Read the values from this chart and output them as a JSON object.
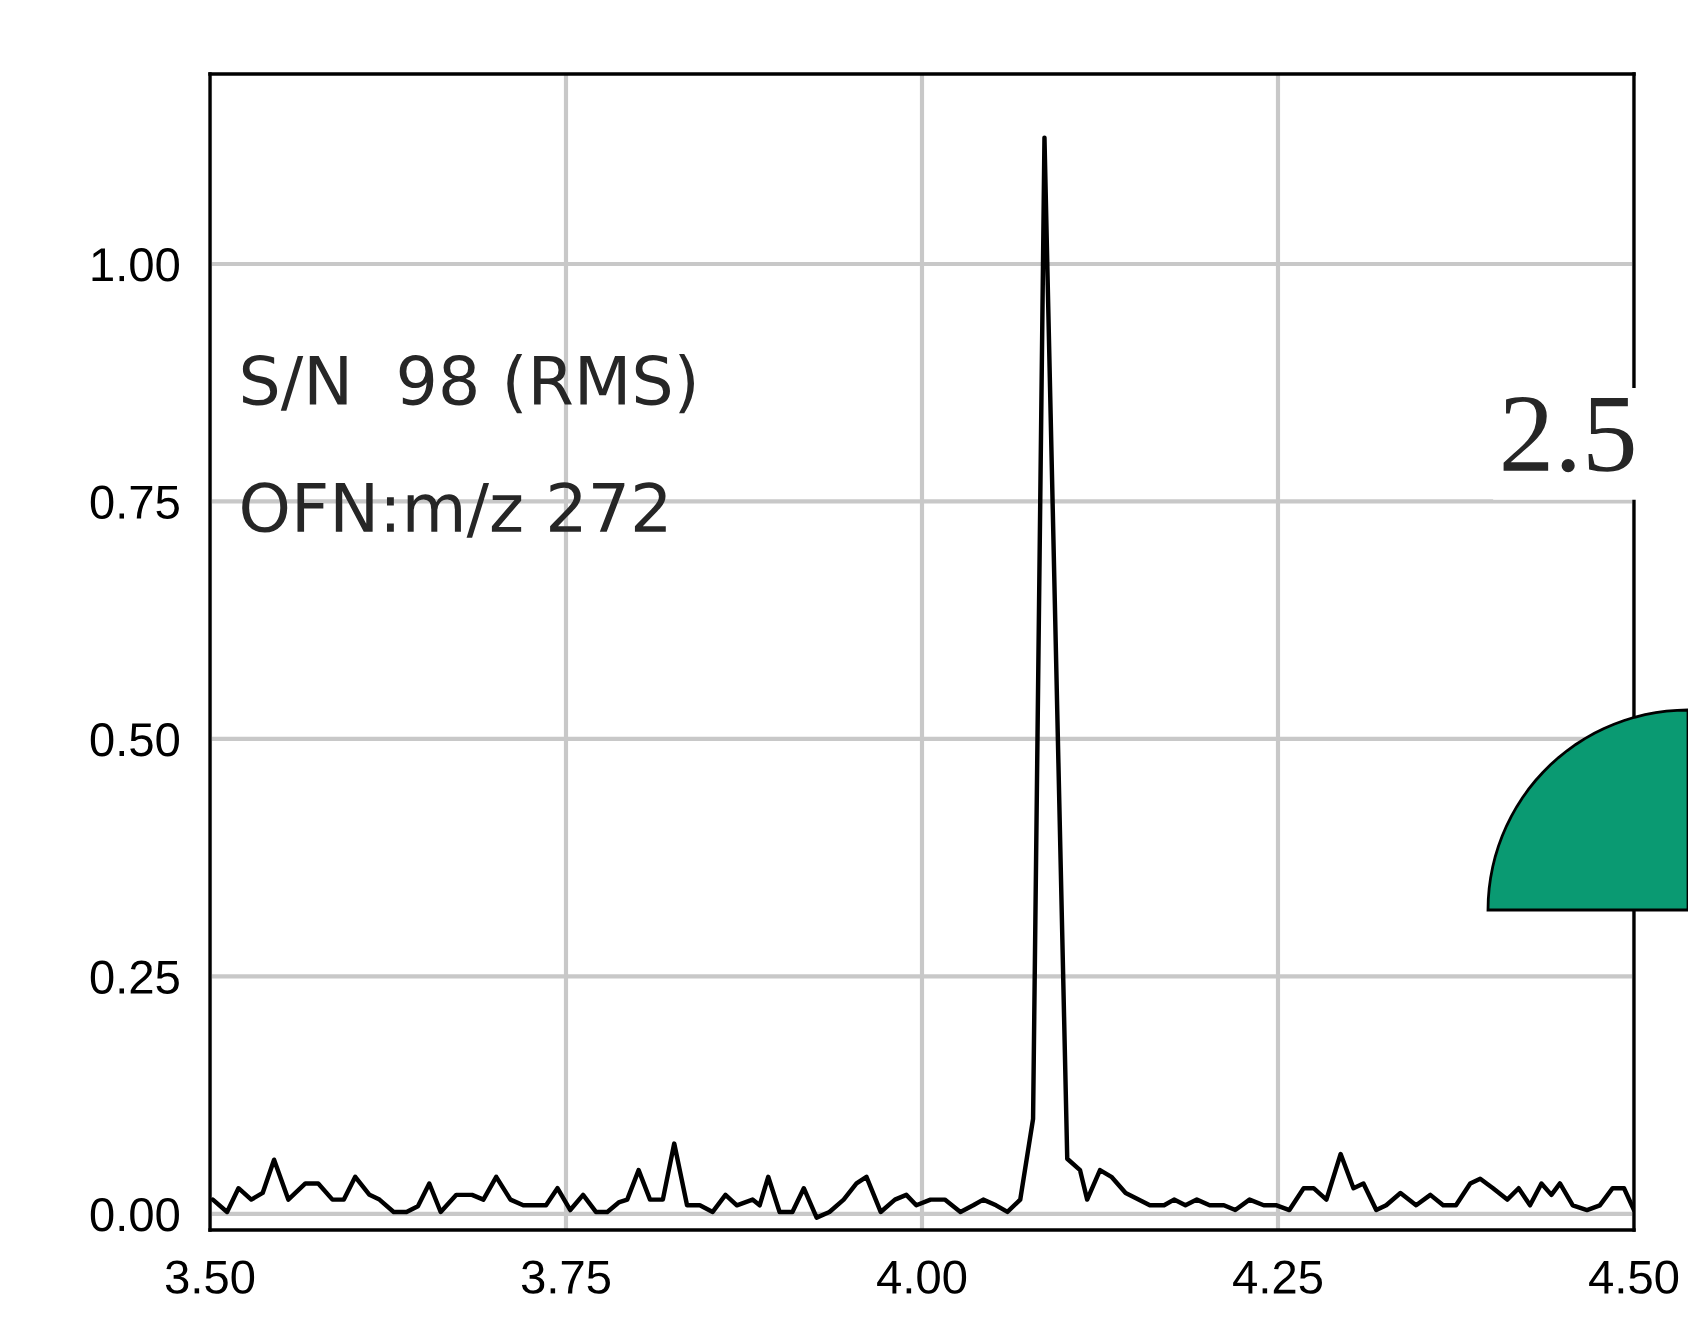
{
  "chart_data": {
    "type": "line",
    "annotations": [
      "S/N  98 (RMS)",
      "OFN:m/z 272",
      "2.5"
    ],
    "series": [
      {
        "color": "#000000",
        "x": [
          3.502,
          3.512,
          3.52,
          3.529,
          3.537,
          3.545,
          3.555,
          3.567,
          3.576,
          3.586,
          3.594,
          3.602,
          3.612,
          3.619,
          3.629,
          3.638,
          3.646,
          3.654,
          3.662,
          3.673,
          3.684,
          3.692,
          3.701,
          3.711,
          3.72,
          3.736,
          3.744,
          3.753,
          3.762,
          3.771,
          3.779,
          3.787,
          3.793,
          3.801,
          3.809,
          3.818,
          3.826,
          3.835,
          3.844,
          3.853,
          3.862,
          3.87,
          3.881,
          3.886,
          3.892,
          3.9,
          3.909,
          3.917,
          3.926,
          3.935,
          3.945,
          3.954,
          3.961,
          3.971,
          3.981,
          3.989,
          3.996,
          4.006,
          4.016,
          4.027,
          4.036,
          4.043,
          4.052,
          4.06,
          4.069,
          4.078,
          4.086,
          4.102,
          4.111,
          4.116,
          4.125,
          4.133,
          4.143,
          4.151,
          4.16,
          4.17,
          4.177,
          4.185,
          4.193,
          4.202,
          4.212,
          4.22,
          4.23,
          4.24,
          4.249,
          4.258,
          4.268,
          4.275,
          4.284,
          4.294,
          4.303,
          4.31,
          4.319,
          4.326,
          4.336,
          4.347,
          4.357,
          4.366,
          4.375,
          4.385,
          4.392,
          4.401,
          4.411,
          4.419,
          4.427,
          4.435,
          4.442,
          4.448,
          4.457,
          4.467,
          4.476,
          4.485,
          4.493,
          4.5
        ],
        "values": [
          0.015,
          0.002,
          0.027,
          0.015,
          0.022,
          0.057,
          0.015,
          0.032,
          0.032,
          0.015,
          0.015,
          0.039,
          0.02,
          0.015,
          0.002,
          0.002,
          0.008,
          0.032,
          0.002,
          0.02,
          0.02,
          0.015,
          0.039,
          0.015,
          0.009,
          0.009,
          0.027,
          0.004,
          0.02,
          0.002,
          0.002,
          0.012,
          0.015,
          0.046,
          0.015,
          0.015,
          0.074,
          0.009,
          0.009,
          0.002,
          0.02,
          0.009,
          0.015,
          0.009,
          0.039,
          0.002,
          0.002,
          0.027,
          -0.004,
          0.002,
          0.015,
          0.032,
          0.039,
          0.002,
          0.015,
          0.02,
          0.009,
          0.015,
          0.015,
          0.002,
          0.009,
          0.015,
          0.009,
          0.002,
          0.015,
          0.1,
          1.133,
          0.058,
          0.046,
          0.015,
          0.046,
          0.039,
          0.022,
          0.016,
          0.009,
          0.009,
          0.015,
          0.009,
          0.015,
          0.009,
          0.009,
          0.004,
          0.015,
          0.009,
          0.009,
          0.004,
          0.027,
          0.027,
          0.015,
          0.063,
          0.027,
          0.032,
          0.004,
          0.009,
          0.022,
          0.009,
          0.02,
          0.009,
          0.009,
          0.032,
          0.037,
          0.027,
          0.015,
          0.027,
          0.009,
          0.032,
          0.02,
          0.032,
          0.009,
          0.004,
          0.009,
          0.027,
          0.027,
          0.004
        ]
      }
    ],
    "xlim": [
      3.5,
      4.5
    ],
    "xticks": [
      {
        "value": 3.5,
        "label": "3.50"
      },
      {
        "value": 3.75,
        "label": "3.75"
      },
      {
        "value": 4.0,
        "label": "4.00"
      },
      {
        "value": 4.25,
        "label": "4.25"
      },
      {
        "value": 4.5,
        "label": "4.50"
      }
    ],
    "ylim": [
      -0.017,
      1.2
    ],
    "yticks": [
      {
        "value": 0,
        "label": "0.00"
      },
      {
        "value": 0.25,
        "label": "0.25"
      },
      {
        "value": 0.5,
        "label": "0.50"
      },
      {
        "value": 0.75,
        "label": "0.75"
      },
      {
        "value": 1.0,
        "label": "1.00"
      }
    ],
    "grid": true,
    "line_style": "solid",
    "marker": "none",
    "legend": false
  }
}
